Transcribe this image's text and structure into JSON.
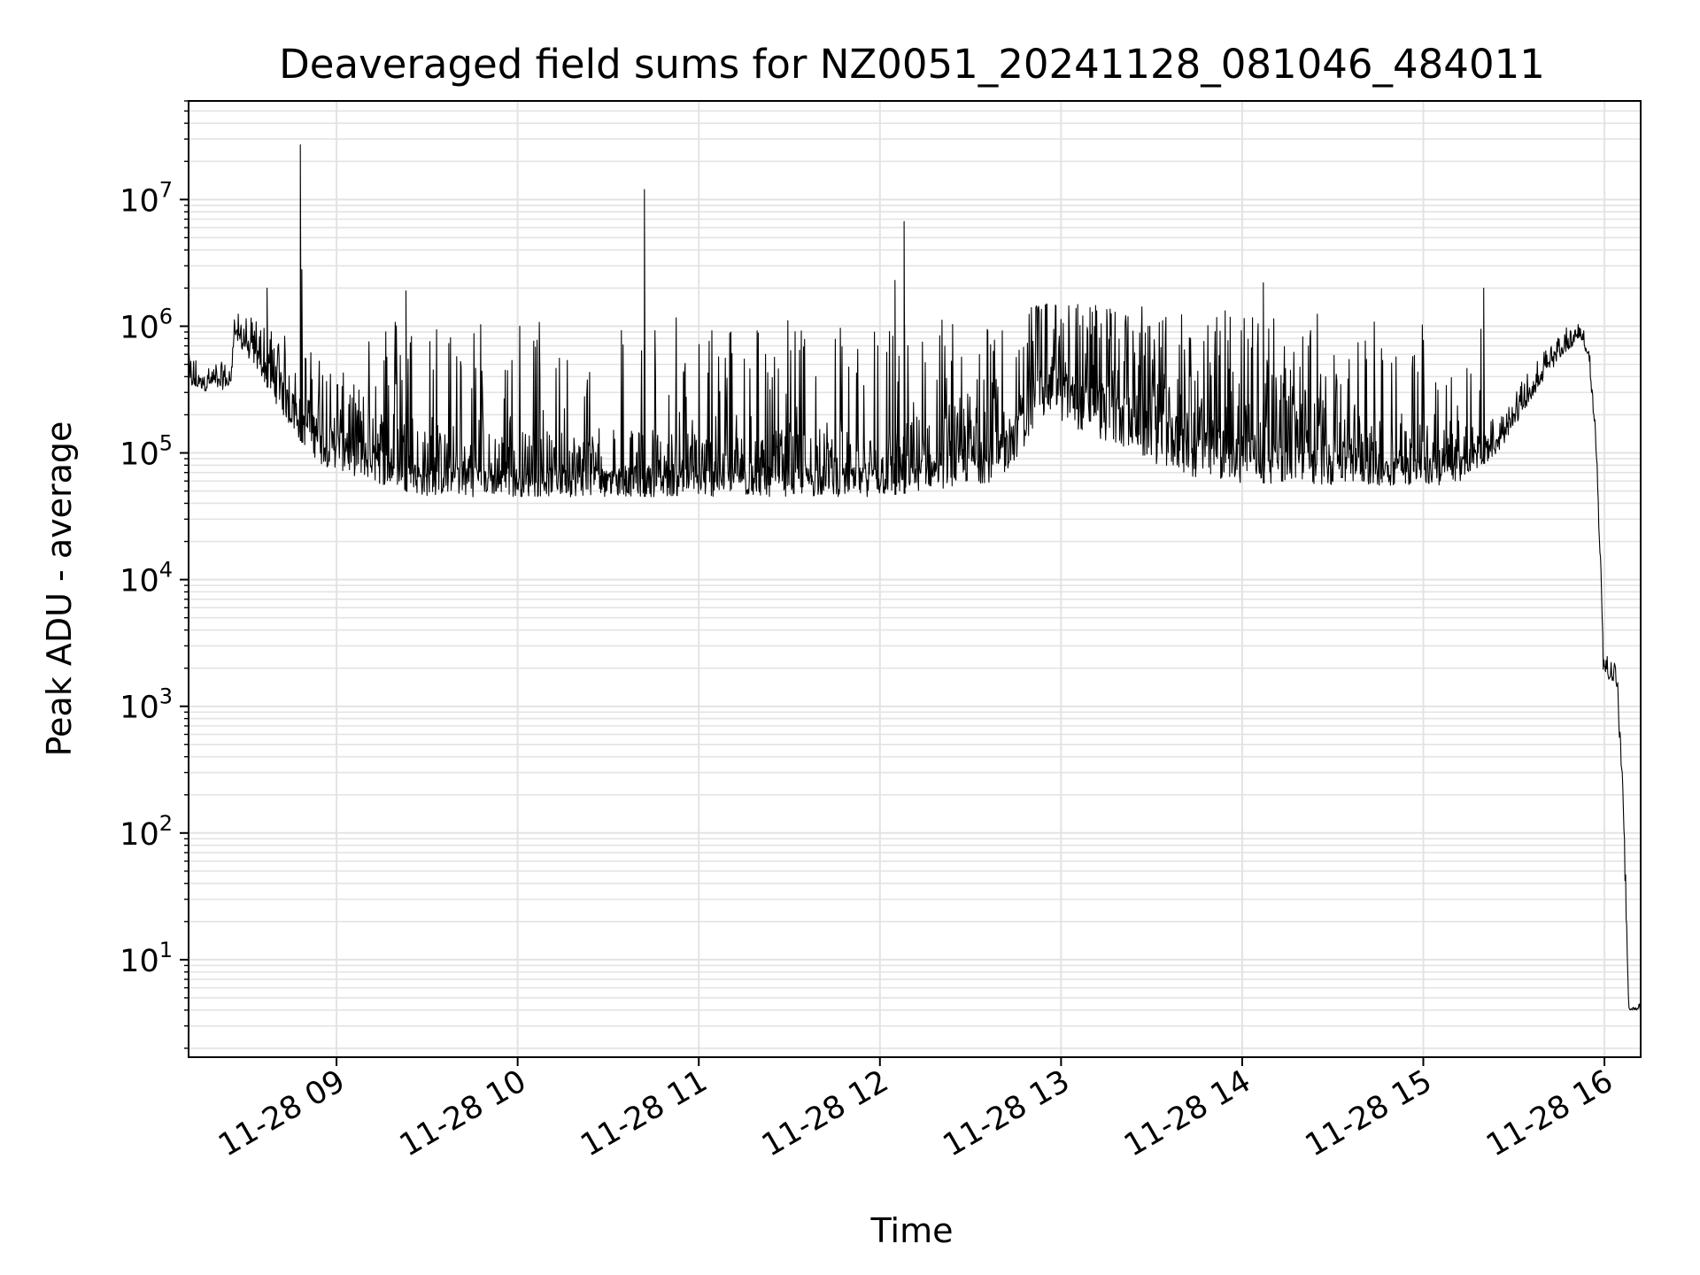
{
  "chart_data": {
    "type": "line",
    "title": "Deaveraged field sums for NZ0051_20241128_081046_484011",
    "xlabel": "Time",
    "ylabel": "Peak ADU - average",
    "y_scale": "log",
    "ylim": [
      1.7,
      60000000
    ],
    "xlim": [
      "11-28 08:11",
      "11-28 16:12"
    ],
    "grid": true,
    "line_color": "#000000",
    "grid_color": "#e3e3e3",
    "x_ticks": [
      {
        "time": "11-28 09:00",
        "label": "11-28 09"
      },
      {
        "time": "11-28 10:00",
        "label": "11-28 10"
      },
      {
        "time": "11-28 11:00",
        "label": "11-28 11"
      },
      {
        "time": "11-28 12:00",
        "label": "11-28 12"
      },
      {
        "time": "11-28 13:00",
        "label": "11-28 13"
      },
      {
        "time": "11-28 14:00",
        "label": "11-28 14"
      },
      {
        "time": "11-28 15:00",
        "label": "11-28 15"
      },
      {
        "time": "11-28 16:00",
        "label": "11-28 16"
      }
    ],
    "y_ticks": [
      {
        "value": 10,
        "base": "10",
        "exp": "1"
      },
      {
        "value": 100,
        "base": "10",
        "exp": "2"
      },
      {
        "value": 1000,
        "base": "10",
        "exp": "3"
      },
      {
        "value": 10000,
        "base": "10",
        "exp": "4"
      },
      {
        "value": 100000,
        "base": "10",
        "exp": "5"
      },
      {
        "value": 1000000,
        "base": "10",
        "exp": "6"
      },
      {
        "value": 10000000,
        "base": "10",
        "exp": "7"
      }
    ],
    "series": [
      {
        "envelope": [
          {
            "time": "11-28 08:11",
            "low": 300000,
            "high": 600000
          },
          {
            "time": "11-28 08:25",
            "low": 320000,
            "high": 500000
          },
          {
            "time": "11-28 08:26",
            "low": 800000,
            "high": 1300000
          },
          {
            "time": "11-28 08:35",
            "low": 400000,
            "high": 1100000
          },
          {
            "time": "11-28 08:45",
            "low": 150000,
            "high": 800000
          },
          {
            "time": "11-28 08:55",
            "low": 80000,
            "high": 600000
          },
          {
            "time": "11-28 09:10",
            "low": 60000,
            "high": 300000
          },
          {
            "time": "11-28 09:30",
            "low": 45000,
            "high": 150000
          },
          {
            "time": "11-28 12:00",
            "low": 45000,
            "high": 150000
          },
          {
            "time": "11-28 12:40",
            "low": 60000,
            "high": 400000
          },
          {
            "time": "11-28 12:55",
            "low": 200000,
            "high": 1500000
          },
          {
            "time": "11-28 13:15",
            "low": 120000,
            "high": 1200000
          },
          {
            "time": "11-28 13:45",
            "low": 60000,
            "high": 600000
          },
          {
            "time": "11-28 14:30",
            "low": 55000,
            "high": 300000
          },
          {
            "time": "11-28 15:10",
            "low": 55000,
            "high": 150000
          },
          {
            "time": "11-28 15:25",
            "low": 100000,
            "high": 200000
          },
          {
            "time": "11-28 15:35",
            "low": 250000,
            "high": 450000
          },
          {
            "time": "11-28 15:45",
            "low": 550000,
            "high": 900000
          },
          {
            "time": "11-28 15:52",
            "low": 800000,
            "high": 1200000
          },
          {
            "time": "11-28 15:55",
            "low": 500000,
            "high": 700000
          },
          {
            "time": "11-28 15:57",
            "low": 120000,
            "high": 200000
          },
          {
            "time": "11-28 15:59",
            "low": 8000,
            "high": 15000
          },
          {
            "time": "11-28 15:59.5",
            "low": 1800,
            "high": 3500
          },
          {
            "time": "11-28 16:04",
            "low": 1400,
            "high": 2200
          },
          {
            "time": "11-28 16:06",
            "low": 200,
            "high": 500
          },
          {
            "time": "11-28 16:08",
            "low": 4,
            "high": 4.5
          },
          {
            "time": "11-28 16:12",
            "low": 4,
            "high": 4.5
          }
        ],
        "spikes": [
          {
            "time": "11-28 08:48",
            "value": 27000000
          },
          {
            "time": "11-28 08:48.5",
            "value": 2800000
          },
          {
            "time": "11-28 10:42",
            "value": 12000000
          },
          {
            "time": "11-28 12:08",
            "value": 6700000
          },
          {
            "time": "11-28 12:05",
            "value": 2300000
          },
          {
            "time": "11-28 14:07",
            "value": 2200000
          },
          {
            "time": "11-28 15:20",
            "value": 2000000
          },
          {
            "time": "11-28 08:37",
            "value": 2000000
          },
          {
            "time": "11-28 09:23",
            "value": 1900000
          }
        ]
      }
    ]
  }
}
